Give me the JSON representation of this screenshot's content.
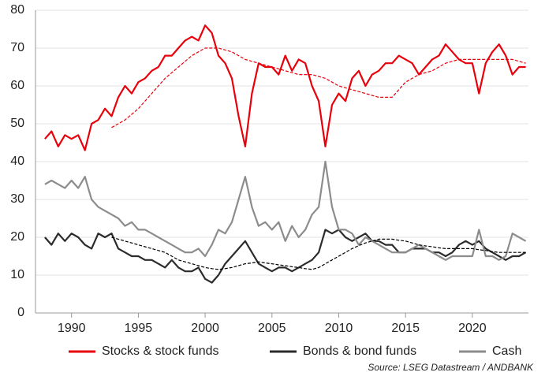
{
  "chart_data": {
    "type": "line",
    "source": "Source: LSEG Datastream / ANDBANK",
    "x": [
      1988,
      1988.5,
      1989,
      1989.5,
      1990,
      1990.5,
      1991,
      1991.5,
      1992,
      1992.5,
      1993,
      1993.5,
      1994,
      1994.5,
      1995,
      1995.5,
      1996,
      1996.5,
      1997,
      1997.5,
      1998,
      1998.5,
      1999,
      1999.5,
      2000,
      2000.5,
      2001,
      2001.5,
      2002,
      2002.5,
      2003,
      2003.5,
      2004,
      2004.5,
      2005,
      2005.5,
      2006,
      2006.5,
      2007,
      2007.5,
      2008,
      2008.5,
      2009,
      2009.5,
      2010,
      2010.5,
      2011,
      2011.5,
      2012,
      2012.5,
      2013,
      2013.5,
      2014,
      2014.5,
      2015,
      2015.5,
      2016,
      2016.5,
      2017,
      2017.5,
      2018,
      2018.5,
      2019,
      2019.5,
      2020,
      2020.5,
      2021,
      2021.5,
      2022,
      2022.5,
      2023,
      2023.5,
      2024
    ],
    "series": [
      {
        "name": "Stocks & stock funds",
        "color": "#e8000b",
        "values": [
          46,
          48,
          44,
          47,
          46,
          47,
          43,
          50,
          51,
          54,
          52,
          57,
          60,
          58,
          61,
          62,
          64,
          65,
          68,
          68,
          70,
          72,
          73,
          72,
          76,
          74,
          68,
          66,
          62,
          52,
          44,
          58,
          66,
          65,
          65,
          63,
          68,
          64,
          67,
          66,
          60,
          56,
          44,
          55,
          58,
          56,
          62,
          64,
          60,
          63,
          64,
          66,
          66,
          68,
          67,
          66,
          63,
          65,
          67,
          68,
          71,
          69,
          67,
          66,
          66,
          58,
          66,
          69,
          71,
          68,
          63,
          65,
          65
        ]
      },
      {
        "name": "Bonds & bond funds",
        "color": "#2b2b2b",
        "values": [
          20,
          18,
          21,
          19,
          21,
          20,
          18,
          17,
          21,
          20,
          21,
          17,
          16,
          15,
          15,
          14,
          14,
          13,
          12,
          14,
          12,
          11,
          11,
          12,
          9,
          8,
          10,
          13,
          15,
          17,
          19,
          16,
          13,
          12,
          11,
          12,
          12,
          11,
          12,
          13,
          14,
          16,
          22,
          21,
          22,
          20,
          19,
          20,
          21,
          19,
          19,
          18,
          18,
          16,
          16,
          17,
          17,
          17,
          16,
          16,
          15,
          16,
          18,
          19,
          18,
          19,
          17,
          16,
          15,
          14,
          15,
          15,
          16
        ]
      },
      {
        "name": "Cash",
        "color": "#8c8c8c",
        "values": [
          34,
          35,
          34,
          33,
          35,
          33,
          36,
          30,
          28,
          27,
          26,
          25,
          23,
          24,
          22,
          22,
          21,
          20,
          19,
          18,
          17,
          16,
          16,
          17,
          15,
          18,
          22,
          21,
          24,
          30,
          36,
          28,
          23,
          24,
          22,
          24,
          19,
          23,
          20,
          22,
          26,
          28,
          40,
          28,
          22,
          22,
          21,
          18,
          20,
          19,
          18,
          17,
          16,
          16,
          16,
          17,
          18,
          17,
          16,
          15,
          14,
          15,
          15,
          15,
          15,
          22,
          15,
          15,
          14,
          15,
          21,
          20,
          19
        ]
      },
      {
        "color": "#e8000b",
        "dash": true,
        "values": [
          null,
          null,
          null,
          null,
          null,
          null,
          null,
          null,
          null,
          null,
          49,
          50,
          51,
          52.5,
          54,
          56,
          58,
          60,
          62,
          63.5,
          65,
          66.5,
          68,
          69,
          70,
          70,
          70,
          69.5,
          69,
          68,
          67,
          66.5,
          66,
          65.5,
          65,
          64.5,
          64,
          63.5,
          63,
          63,
          63,
          62.5,
          62,
          61,
          60,
          59.5,
          59,
          58.5,
          58,
          57.5,
          57,
          57,
          57,
          59,
          61,
          62,
          63,
          63.5,
          64,
          65,
          66,
          66.5,
          67,
          67,
          67,
          67,
          67,
          67,
          67,
          67,
          67,
          66.5,
          66
        ]
      },
      {
        "color": "#000000",
        "dash": true,
        "values": [
          null,
          null,
          null,
          null,
          null,
          null,
          null,
          null,
          null,
          null,
          20,
          19.5,
          19,
          18.5,
          18,
          17.5,
          17,
          16.5,
          16,
          15,
          14,
          13.5,
          13,
          12.5,
          12,
          11.7,
          11.5,
          11.7,
          12,
          12.5,
          13,
          13.2,
          13.5,
          13.2,
          13,
          12.7,
          12.5,
          12.2,
          12,
          11.7,
          11.5,
          12,
          13,
          14,
          15,
          16,
          17,
          17.8,
          18.5,
          19,
          19.5,
          19.5,
          19.5,
          19.2,
          19,
          18.5,
          18,
          17.7,
          17.5,
          17.2,
          17,
          17,
          17,
          17,
          17,
          16.7,
          16.5,
          16.2,
          16,
          16,
          16,
          16,
          16
        ]
      }
    ],
    "xlim": [
      1987.3,
      2024.2
    ],
    "ylim": [
      0,
      80
    ],
    "xticks": [
      1990,
      1995,
      2000,
      2005,
      2010,
      2015,
      2020
    ],
    "yticks": [
      0,
      10,
      20,
      30,
      40,
      50,
      60,
      70,
      80
    ],
    "grid": true,
    "legend": "bottom"
  }
}
